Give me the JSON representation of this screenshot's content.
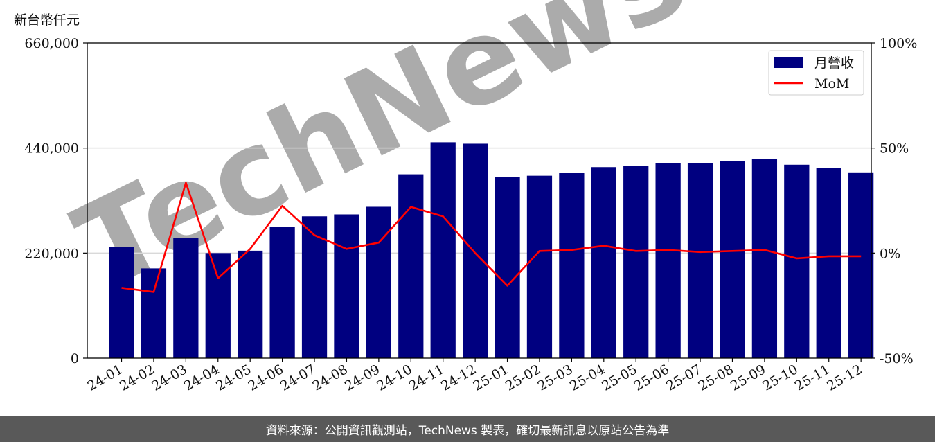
{
  "unit_label": "新台幣仟元",
  "watermark": "TechNews",
  "footer": "資料來源：公開資訊觀測站，TechNews 製表，確切最新訊息以原站公告為準",
  "colors": {
    "bar": "#000080",
    "line": "#ff0000",
    "grid": "#d9d9d9",
    "footer_bg": "#595959"
  },
  "chart_data": {
    "type": "bar",
    "categories": [
      "24-01",
      "24-02",
      "24-03",
      "24-04",
      "24-05",
      "24-06",
      "24-07",
      "24-08",
      "24-09",
      "24-10",
      "24-11",
      "24-12",
      "25-01",
      "25-02",
      "25-03",
      "25-04",
      "25-05",
      "25-06",
      "25-07",
      "25-08",
      "25-09",
      "25-10",
      "25-11",
      "25-12"
    ],
    "series": [
      {
        "name": "月營收",
        "type": "bar",
        "axis": "left",
        "values": [
          233000,
          188000,
          252000,
          220000,
          225000,
          275000,
          297000,
          301000,
          317000,
          385000,
          452000,
          449000,
          379000,
          382000,
          388000,
          400000,
          403000,
          408000,
          408000,
          412000,
          417000,
          405000,
          398000,
          389000
        ]
      },
      {
        "name": "MoM",
        "type": "line",
        "axis": "right",
        "values": [
          -16.5,
          -18.5,
          33.5,
          -12.0,
          2.0,
          22.5,
          8.5,
          2.0,
          5.0,
          22.0,
          17.5,
          0.0,
          -15.5,
          1.0,
          1.5,
          3.5,
          1.0,
          1.5,
          0.5,
          1.0,
          1.5,
          -2.5,
          -1.5,
          -1.5
        ]
      }
    ],
    "y_left": {
      "ylim": [
        0,
        660000
      ],
      "ticks": [
        0,
        220000,
        440000,
        660000
      ],
      "tick_labels": [
        "0",
        "220,000",
        "440,000",
        "660,000"
      ]
    },
    "y_right": {
      "ylim": [
        -50,
        100
      ],
      "ticks": [
        -50,
        0,
        50,
        100
      ],
      "tick_labels": [
        "-50%",
        "0%",
        "50%",
        "100%"
      ]
    },
    "grid": "horizontal",
    "legend": {
      "placement": "top-right",
      "entries": [
        "月營收",
        "MoM"
      ]
    }
  }
}
